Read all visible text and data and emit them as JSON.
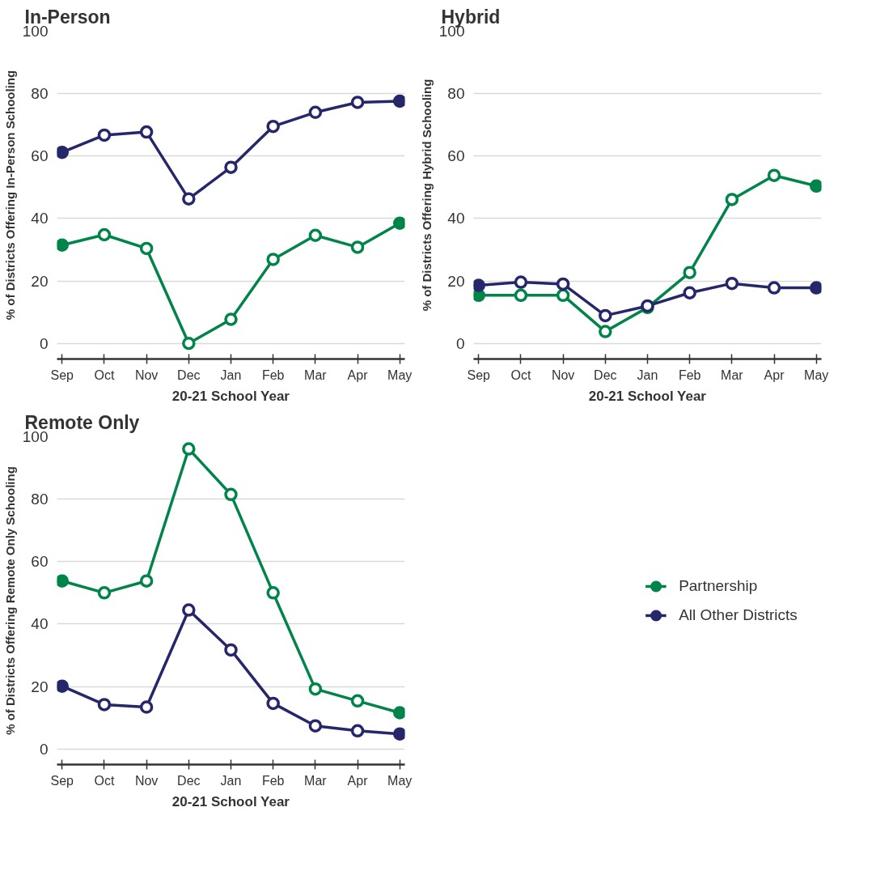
{
  "chart_data": [
    {
      "type": "line",
      "title": "In-Person",
      "xlabel": "20-21 School Year",
      "ylabel": "% of Districts Offering In-Person Schooling",
      "categories": [
        "Sep",
        "Oct",
        "Nov",
        "Dec",
        "Jan",
        "Feb",
        "Mar",
        "Apr",
        "May"
      ],
      "ylim": [
        -5,
        100
      ],
      "yticks": [
        0,
        20,
        40,
        60,
        80,
        100
      ],
      "grid": "y",
      "marker": "circle",
      "legend": false,
      "series": [
        {
          "color": "#00844a",
          "values": [
            31.5,
            34.8,
            30.4,
            0,
            7.7,
            26.9,
            34.6,
            30.8,
            38.5
          ]
        },
        {
          "color": "#26266b",
          "values": [
            61.2,
            66.7,
            67.7,
            46.3,
            56.4,
            69.5,
            74,
            77.2,
            77.6
          ]
        }
      ]
    },
    {
      "type": "line",
      "title": "Hybrid",
      "xlabel": "20-21 School Year",
      "ylabel": "% of Districts Offering Hybrid Schooling",
      "categories": [
        "Sep",
        "Oct",
        "Nov",
        "Dec",
        "Jan",
        "Feb",
        "Mar",
        "Apr",
        "May"
      ],
      "ylim": [
        -5,
        100
      ],
      "yticks": [
        0,
        20,
        40,
        60,
        80,
        100
      ],
      "grid": "y",
      "marker": "circle",
      "legend": false,
      "series": [
        {
          "color": "#00844a",
          "values": [
            15.4,
            15.4,
            15.4,
            3.8,
            11.5,
            22.7,
            46.1,
            53.8,
            50.4
          ]
        },
        {
          "color": "#26266b",
          "values": [
            18.6,
            19.6,
            19.0,
            8.9,
            12.0,
            16.2,
            19.2,
            17.8,
            17.8
          ]
        }
      ]
    },
    {
      "type": "line",
      "title": "Remote Only",
      "xlabel": "20-21 School Year",
      "ylabel": "% of Districts Offering Remote Only Schooling",
      "categories": [
        "Sep",
        "Oct",
        "Nov",
        "Dec",
        "Jan",
        "Feb",
        "Mar",
        "Apr",
        "May"
      ],
      "ylim": [
        -5,
        100
      ],
      "yticks": [
        0,
        20,
        40,
        60,
        80,
        100
      ],
      "grid": "y",
      "marker": "circle",
      "legend": "right",
      "series": [
        {
          "name": "Partnership",
          "color": "#00844a",
          "values": [
            53.8,
            50.0,
            53.8,
            96.1,
            81.5,
            50.0,
            19.2,
            15.4,
            11.6
          ]
        },
        {
          "name": "All Other Districts",
          "color": "#26266b",
          "values": [
            20.1,
            14.2,
            13.4,
            44.5,
            31.7,
            14.6,
            7.4,
            5.8,
            4.8
          ]
        }
      ]
    }
  ]
}
